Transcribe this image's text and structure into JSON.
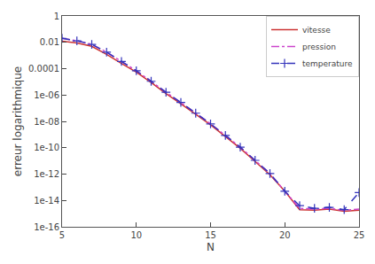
{
  "chart_data": {
    "type": "line",
    "log": "y",
    "xlabel": "N",
    "ylabel": "erreur logarithmique",
    "x": [
      5,
      6,
      7,
      8,
      9,
      10,
      11,
      12,
      13,
      14,
      15,
      16,
      17,
      18,
      19,
      20,
      21,
      22,
      23,
      24,
      25
    ],
    "series": [
      {
        "name": "vitesse",
        "color": "#cc3333",
        "line_style": "solid",
        "values": [
          0.012,
          0.009,
          0.005,
          0.0012,
          0.00025,
          5.5e-05,
          9e-06,
          1.3e-06,
          2.2e-07,
          3.5e-08,
          5.5e-09,
          7e-10,
          9e-11,
          9e-12,
          9e-13,
          5e-14,
          2e-15,
          1.8e-15,
          2.2e-15,
          1.5e-15,
          1.8e-15
        ]
      },
      {
        "name": "pression",
        "color": "#cc44cc",
        "line_style": "dashdot",
        "values": [
          0.02,
          0.013,
          0.007,
          0.0018,
          0.00035,
          7e-05,
          1.1e-05,
          1.6e-06,
          2.7e-07,
          4.2e-08,
          6.5e-09,
          8.5e-10,
          1.1e-10,
          1.1e-11,
          1.1e-12,
          5e-14,
          2.5e-15,
          2.2e-15,
          2.5e-15,
          1.8e-15,
          2.2e-15
        ]
      },
      {
        "name": "temperature",
        "color": "#3333bb",
        "line_style": "dash",
        "marker": "plus",
        "values": [
          0.02,
          0.013,
          0.007,
          0.0018,
          0.00035,
          7e-05,
          1.1e-05,
          1.6e-06,
          2.7e-07,
          4.2e-08,
          6.5e-09,
          8.5e-10,
          1.1e-10,
          1.1e-11,
          1.1e-12,
          5e-14,
          4e-15,
          2.5e-15,
          3e-15,
          2e-15,
          4e-14
        ]
      }
    ],
    "xlim": [
      5,
      25
    ],
    "xticks": [
      5,
      10,
      15,
      20,
      25
    ],
    "ylim": [
      1e-16,
      1
    ],
    "yticks": [
      1,
      0.01,
      0.0001,
      {
        "value": 1e-06,
        "label": "1e-06"
      },
      {
        "value": 1e-08,
        "label": "1e-08"
      },
      {
        "value": 1e-10,
        "label": "1e-10"
      },
      {
        "value": 1e-12,
        "label": "1e-12"
      },
      {
        "value": 1e-14,
        "label": "1e-14"
      },
      {
        "value": 1e-16,
        "label": "1e-16"
      }
    ],
    "grid": false,
    "legend": "upper right"
  }
}
